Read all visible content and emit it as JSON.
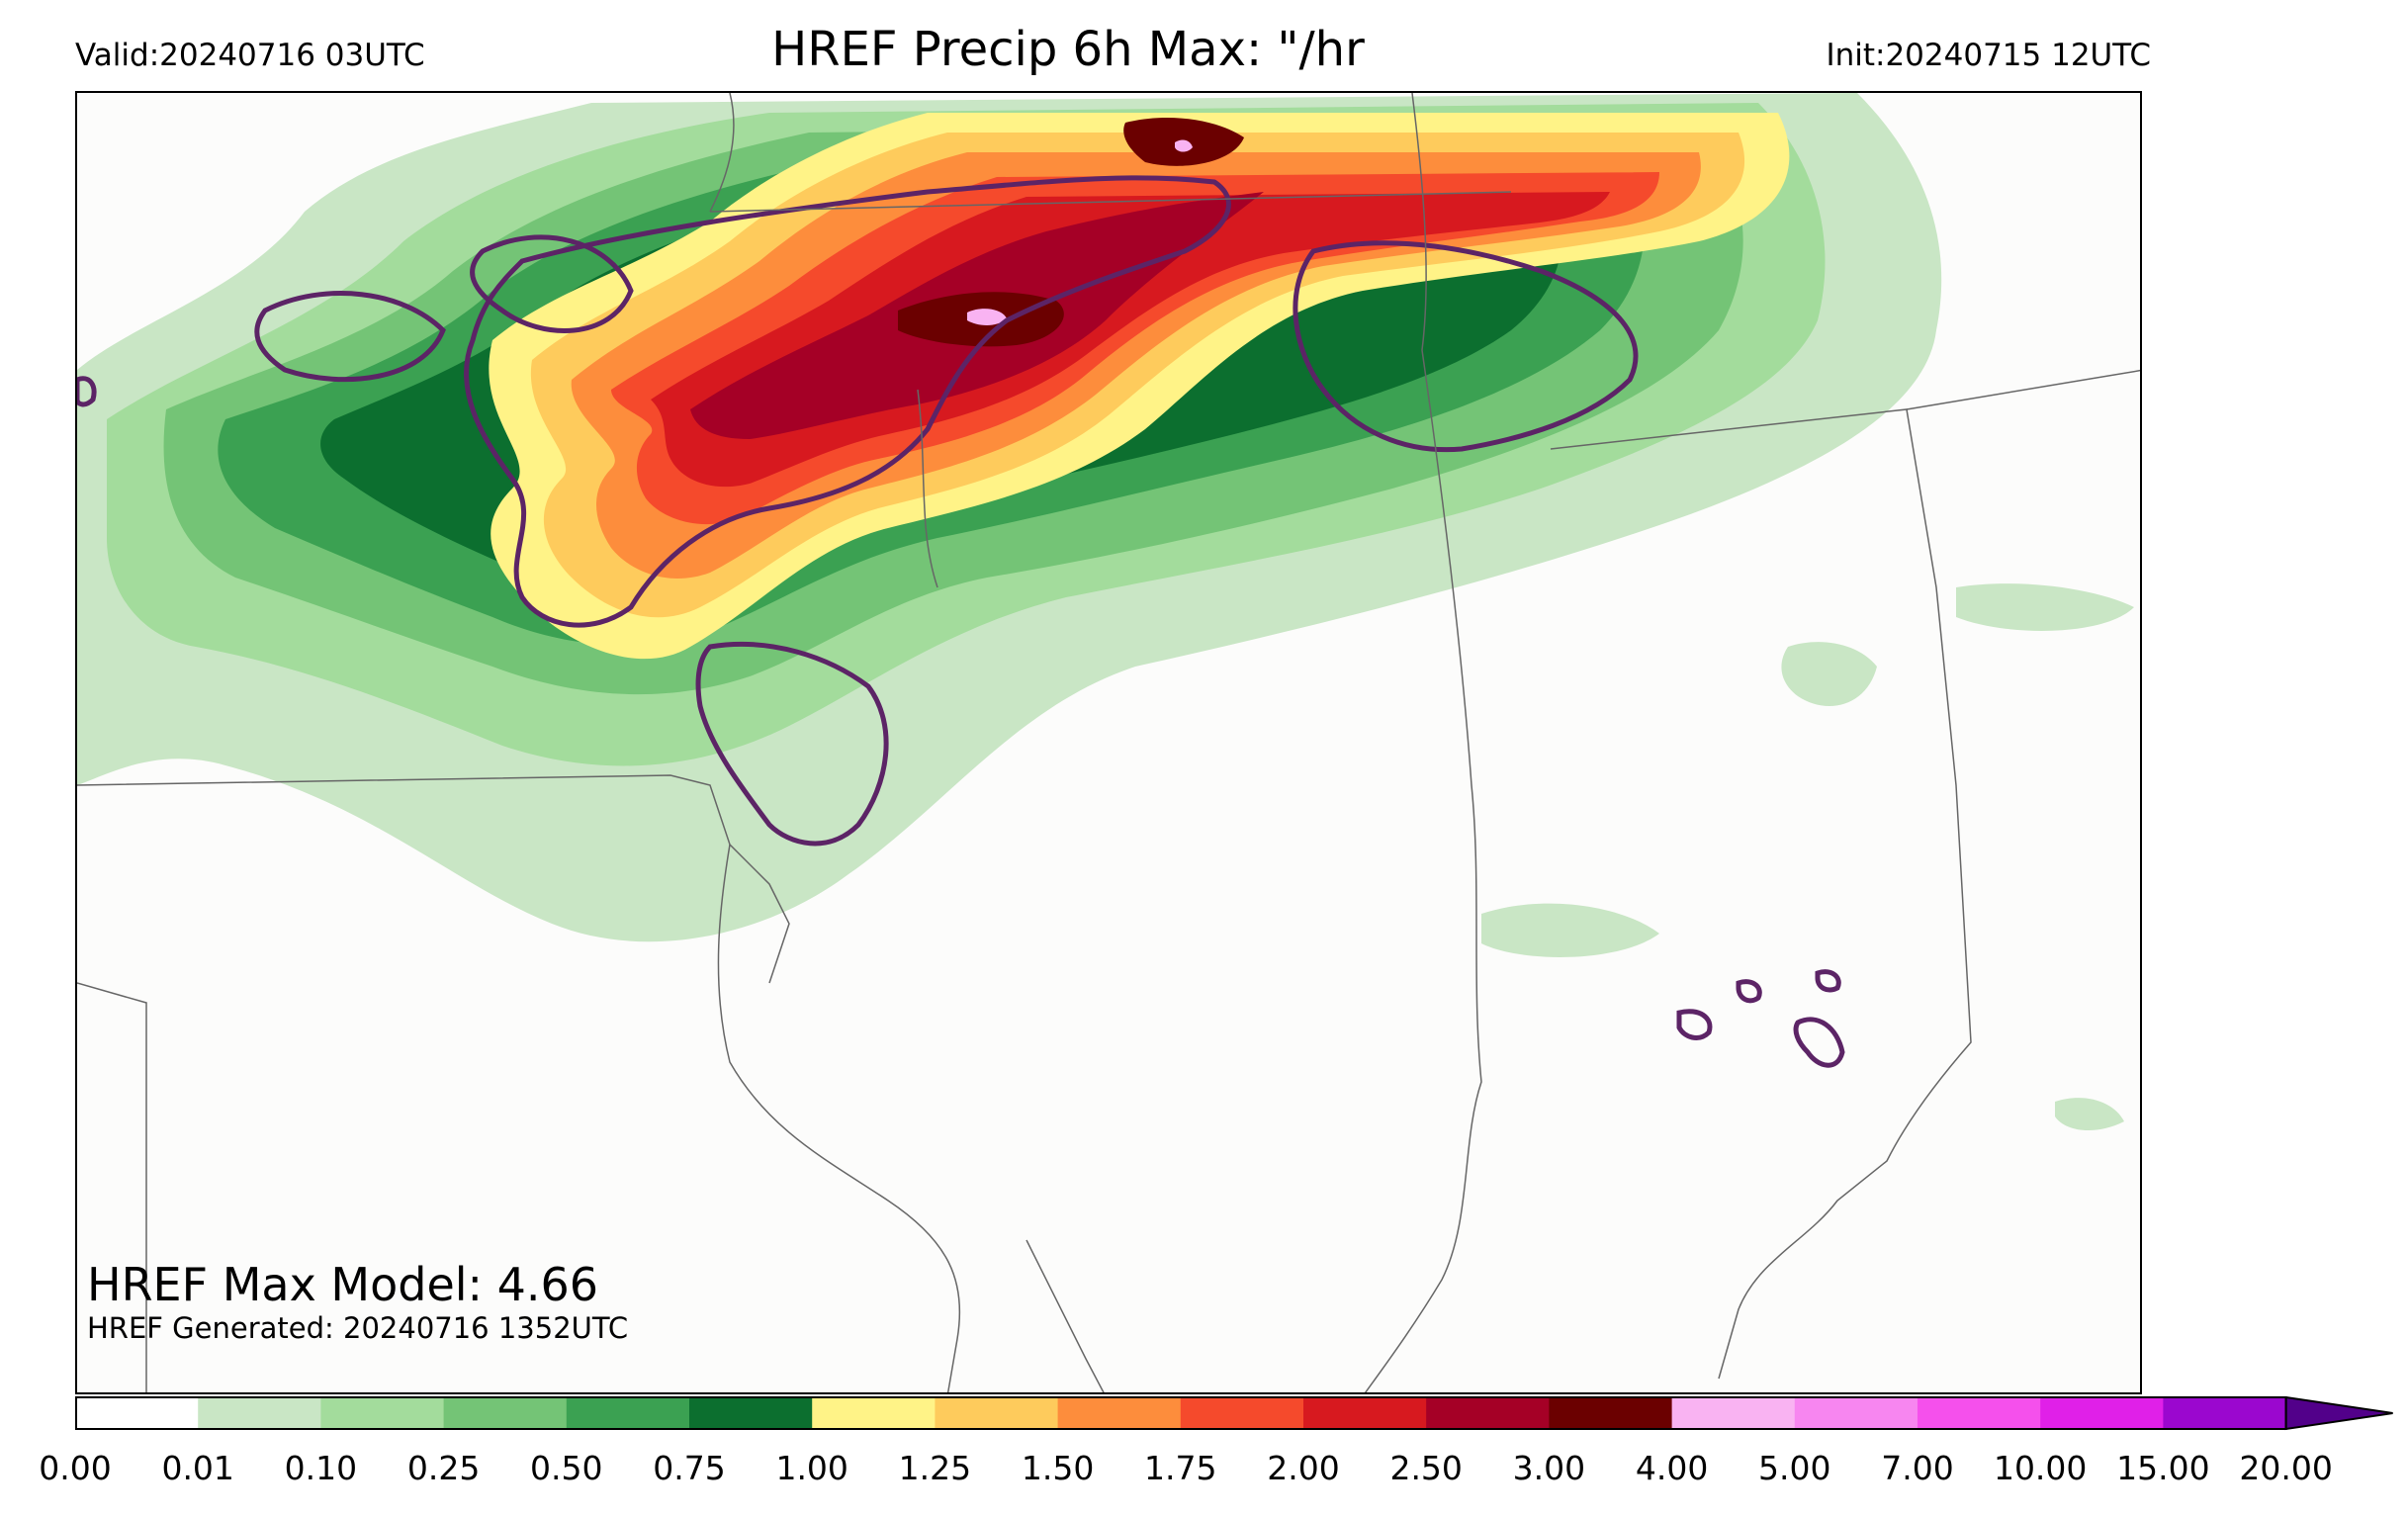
{
  "header": {
    "valid": "Valid:20240716 03UTC",
    "title": "HREF Precip 6h Max: \"/hr",
    "init": "Init:20240715 12UTC"
  },
  "annotations": {
    "max_model": "HREF Max Model: 4.66",
    "generated": "HREF Generated: 20240716 1352UTC"
  },
  "colorbar": {
    "levels": [
      "0.00",
      "0.01",
      "0.10",
      "0.25",
      "0.50",
      "0.75",
      "1.00",
      "1.25",
      "1.50",
      "1.75",
      "2.00",
      "2.50",
      "3.00",
      "4.00",
      "5.00",
      "7.00",
      "10.00",
      "15.00",
      "20.00"
    ],
    "colors": [
      "#ffffff",
      "#c9e6c5",
      "#a3dc9c",
      "#74c476",
      "#3ba152",
      "#0c6f2f",
      "#fff387",
      "#fecb5c",
      "#fd8d3c",
      "#f54a2c",
      "#d7191f",
      "#a50026",
      "#6b0000",
      "#f9b3f2",
      "#f786f0",
      "#f550ec",
      "#e020e8",
      "#9b07cf"
    ],
    "extend_color": "#52008a"
  },
  "colors": {
    "contour": "#5c2466",
    "border": "#666666"
  }
}
